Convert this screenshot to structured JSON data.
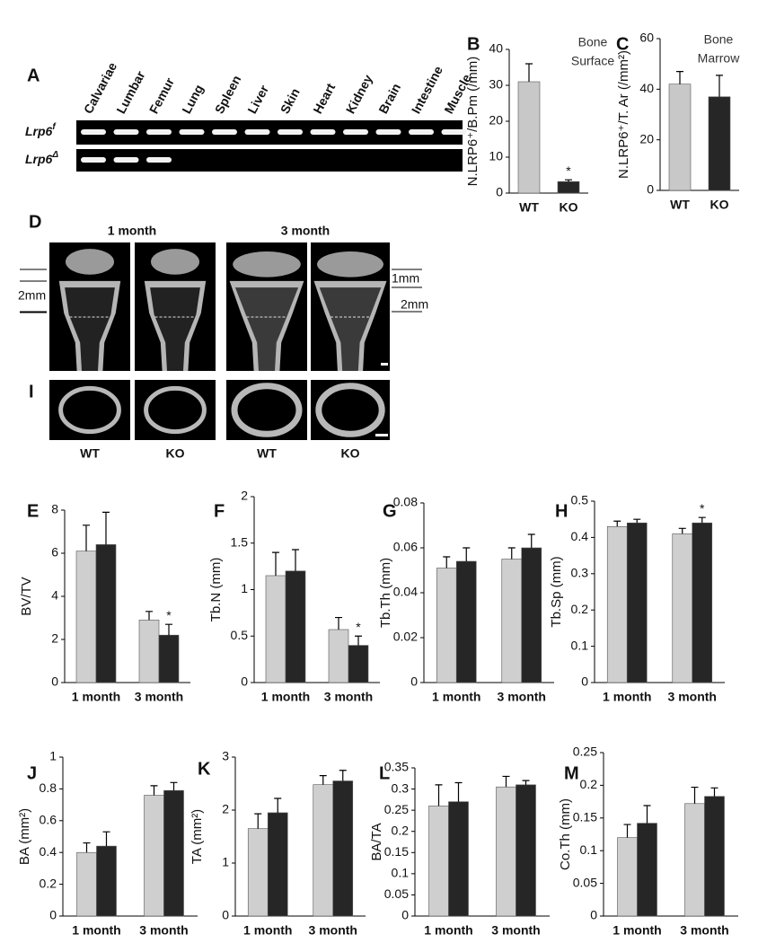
{
  "panel_a": {
    "label": "A",
    "lanes": [
      "Calvariae",
      "Lumbar",
      "Femur",
      "Lung",
      "Spleen",
      "Liver",
      "Skin",
      "Heart",
      "Kidney",
      "Brain",
      "Intestine",
      "Muscle"
    ],
    "rows": [
      {
        "gene": "Lrp6",
        "sup": "f"
      },
      {
        "gene": "Lrp6",
        "sup": "Δ"
      }
    ]
  },
  "panel_d": {
    "label": "D",
    "titles": [
      "1 month",
      "3 month"
    ],
    "scale_left": "2mm",
    "scale_right": [
      "1mm",
      "2mm"
    ]
  },
  "panel_i": {
    "label": "I",
    "genotypes": [
      "WT",
      "KO",
      "WT",
      "KO"
    ]
  },
  "chart_data": [
    {
      "type": "bar",
      "label": "B",
      "ylabel": "N.LRP6⁺/B.Pm (/mm)",
      "annotation": [
        "Bone",
        "Surface"
      ],
      "categories": [
        "WT",
        "KO"
      ],
      "values": [
        31,
        3.2
      ],
      "errors": [
        5,
        0.5
      ],
      "colors": [
        "#c8c8c8",
        "#262626"
      ],
      "significance": [
        null,
        "*"
      ],
      "ylim": [
        0,
        40
      ],
      "yticks": [
        0,
        10,
        20,
        30,
        40
      ]
    },
    {
      "type": "bar",
      "label": "C",
      "ylabel": "N.LRP6⁺/T. Ar (/mm²)",
      "annotation": [
        "Bone",
        "Marrow"
      ],
      "categories": [
        "WT",
        "KO"
      ],
      "values": [
        42,
        37
      ],
      "errors": [
        5,
        8.5
      ],
      "colors": [
        "#c8c8c8",
        "#262626"
      ],
      "ylim": [
        0,
        60
      ],
      "yticks": [
        0,
        20,
        40,
        60
      ]
    },
    {
      "type": "bar",
      "label": "E",
      "ylabel": "BV/TV",
      "categories": [
        "1 month",
        "3 month"
      ],
      "series": [
        {
          "color": "#cfcfcf",
          "values": [
            6.1,
            2.9
          ],
          "errors": [
            1.2,
            0.4
          ]
        },
        {
          "color": "#262626",
          "values": [
            6.4,
            2.2
          ],
          "errors": [
            1.5,
            0.5
          ],
          "significance": [
            null,
            "*"
          ]
        }
      ],
      "ylim": [
        0,
        8
      ],
      "yticks": [
        0,
        2,
        4,
        6,
        8
      ]
    },
    {
      "type": "bar",
      "label": "F",
      "ylabel": "Tb.N (mm)",
      "categories": [
        "1 month",
        "3 month"
      ],
      "series": [
        {
          "color": "#cfcfcf",
          "values": [
            1.15,
            0.57
          ],
          "errors": [
            0.25,
            0.13
          ]
        },
        {
          "color": "#262626",
          "values": [
            1.2,
            0.4
          ],
          "errors": [
            0.23,
            0.1
          ],
          "significance": [
            null,
            "*"
          ]
        }
      ],
      "ylim": [
        0,
        2
      ],
      "yticks": [
        0,
        0.5,
        1,
        1.5,
        2
      ]
    },
    {
      "type": "bar",
      "label": "G",
      "ylabel": "Tb.Th (mm)",
      "categories": [
        "1 month",
        "3 month"
      ],
      "series": [
        {
          "color": "#cfcfcf",
          "values": [
            0.051,
            0.055
          ],
          "errors": [
            0.005,
            0.005
          ]
        },
        {
          "color": "#262626",
          "values": [
            0.054,
            0.06
          ],
          "errors": [
            0.006,
            0.006
          ]
        }
      ],
      "ylim": [
        0,
        0.08
      ],
      "yticks": [
        0,
        0.02,
        0.04,
        0.06,
        0.08
      ]
    },
    {
      "type": "bar",
      "label": "H",
      "ylabel": "Tb.Sp (mm)",
      "categories": [
        "1 month",
        "3 month"
      ],
      "series": [
        {
          "color": "#cfcfcf",
          "values": [
            0.43,
            0.41
          ],
          "errors": [
            0.015,
            0.015
          ]
        },
        {
          "color": "#262626",
          "values": [
            0.44,
            0.44
          ],
          "errors": [
            0.01,
            0.015
          ],
          "significance": [
            null,
            "*"
          ]
        }
      ],
      "ylim": [
        0,
        0.5
      ],
      "yticks": [
        0,
        0.1,
        0.2,
        0.3,
        0.4,
        0.5
      ]
    },
    {
      "type": "bar",
      "label": "J",
      "ylabel": "BA (mm²)",
      "categories": [
        "1 month",
        "3 month"
      ],
      "series": [
        {
          "color": "#cfcfcf",
          "values": [
            0.4,
            0.76
          ],
          "errors": [
            0.06,
            0.06
          ]
        },
        {
          "color": "#262626",
          "values": [
            0.44,
            0.79
          ],
          "errors": [
            0.09,
            0.05
          ]
        }
      ],
      "ylim": [
        0,
        1
      ],
      "yticks": [
        0,
        0.2,
        0.4,
        0.6,
        0.8,
        1
      ]
    },
    {
      "type": "bar",
      "label": "K",
      "ylabel": "TA (mm²)",
      "categories": [
        "1 month",
        "3 month"
      ],
      "series": [
        {
          "color": "#cfcfcf",
          "values": [
            1.65,
            2.48
          ],
          "errors": [
            0.28,
            0.17
          ]
        },
        {
          "color": "#262626",
          "values": [
            1.95,
            2.55
          ],
          "errors": [
            0.27,
            0.2
          ]
        }
      ],
      "ylim": [
        0,
        3
      ],
      "yticks": [
        0,
        1,
        2,
        3
      ]
    },
    {
      "type": "bar",
      "label": "L",
      "ylabel": "BA/TA",
      "categories": [
        "1 month",
        "3 month"
      ],
      "series": [
        {
          "color": "#cfcfcf",
          "values": [
            0.26,
            0.305
          ],
          "errors": [
            0.05,
            0.025
          ]
        },
        {
          "color": "#262626",
          "values": [
            0.27,
            0.31
          ],
          "errors": [
            0.045,
            0.01
          ]
        }
      ],
      "ylim": [
        0,
        0.35
      ],
      "yticks": [
        0,
        0.05,
        0.1,
        0.15,
        0.2,
        0.25,
        0.3,
        0.35
      ]
    },
    {
      "type": "bar",
      "label": "M",
      "ylabel": "Co.Th (mm)",
      "categories": [
        "1 month",
        "3 month"
      ],
      "series": [
        {
          "color": "#cfcfcf",
          "values": [
            0.12,
            0.172
          ],
          "errors": [
            0.02,
            0.025
          ]
        },
        {
          "color": "#262626",
          "values": [
            0.142,
            0.183
          ],
          "errors": [
            0.027,
            0.013
          ]
        }
      ],
      "ylim": [
        0,
        0.25
      ],
      "yticks": [
        0,
        0.05,
        0.1,
        0.15,
        0.2,
        0.25
      ]
    }
  ]
}
